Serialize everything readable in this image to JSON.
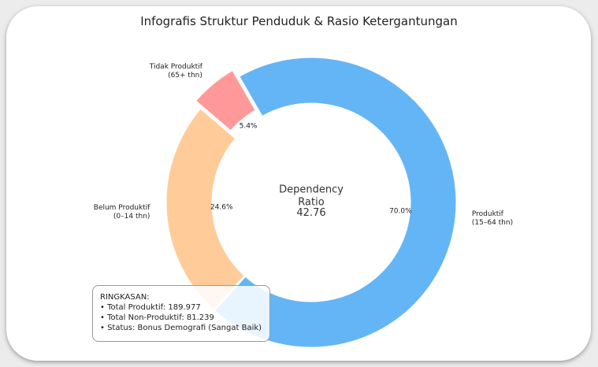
{
  "chart_data": {
    "type": "donut",
    "title": "Infografis Struktur Penduduk & Rasio Ketergantungan",
    "categories": [
      "Produktif\n(15–64 thn)",
      "Belum Produktif\n(0–14 thn)",
      "Tidak Produktif\n(65+ thn)"
    ],
    "values": [
      70.0,
      24.6,
      5.4
    ],
    "value_labels": [
      "70.0%",
      "24.6%",
      "5.4%"
    ],
    "colors": [
      "#64b5f6",
      "#ffcc99",
      "#ff9999"
    ],
    "explode": [
      0,
      0,
      0.06
    ],
    "start_angle_deg": -30,
    "clockwise": true,
    "center_label": "Dependency\nRatio",
    "center_value": 42.76,
    "summary": {
      "title": "RINGKASAN:",
      "lines": [
        "• Total Produktif: 189.977",
        "• Total Non-Produktif: 81.239",
        "• Status: Bonus Demografi (Sangat Baik)"
      ]
    }
  }
}
